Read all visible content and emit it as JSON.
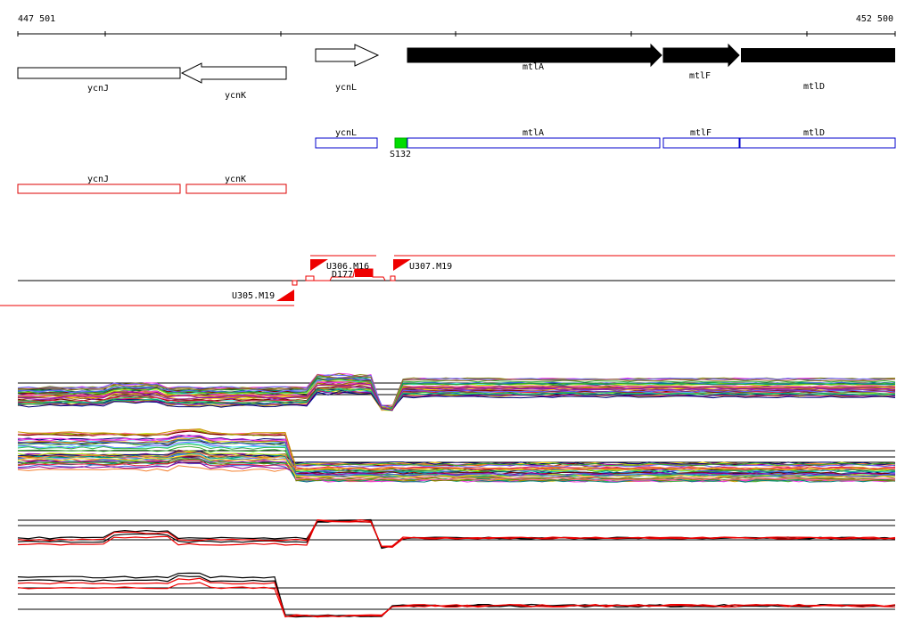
{
  "ruler": {
    "start_label": "447 501",
    "end_label": "452 500"
  },
  "genes_track": [
    {
      "name": "ycnJ",
      "strand": "+",
      "filled": false
    },
    {
      "name": "ycnK",
      "strand": "-",
      "filled": false
    },
    {
      "name": "ycnL",
      "strand": "+",
      "filled": false
    },
    {
      "name": "mtlA",
      "strand": "+",
      "filled": true
    },
    {
      "name": "mtlF",
      "strand": "+",
      "filled": true
    },
    {
      "name": "mtlD",
      "strand": "+",
      "filled": true
    }
  ],
  "blue_features": [
    "ycnL",
    "mtlA",
    "mtlF",
    "mtlD"
  ],
  "green_feature": {
    "label": "S132",
    "color": "#00dd00"
  },
  "red_features": [
    "ycnJ",
    "ycnK"
  ],
  "transcripts": {
    "upstream_fwd": "U306.M16",
    "downstream_fwd": "U307.M19",
    "reverse": "U305.M19",
    "terminator": "D177"
  },
  "colors": {
    "blue_box": "#0000cc",
    "red_box": "#dd0000",
    "transcript": "#ee0000"
  }
}
